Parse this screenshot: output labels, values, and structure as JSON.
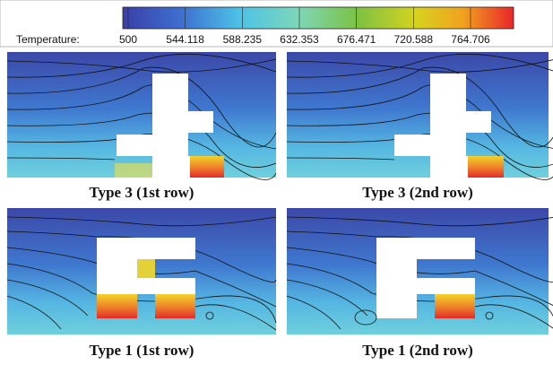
{
  "colorbar": {
    "label": "Temperature:",
    "ticks": [
      500,
      544.118,
      588.235,
      632.353,
      676.471,
      720.588,
      764.706
    ]
  },
  "panels": [
    {
      "caption": "Type 3 (1st row)"
    },
    {
      "caption": "Type 3 (2nd row)"
    },
    {
      "caption": "Type 1 (1st row)"
    },
    {
      "caption": "Type 1 (2nd row)"
    }
  ]
}
